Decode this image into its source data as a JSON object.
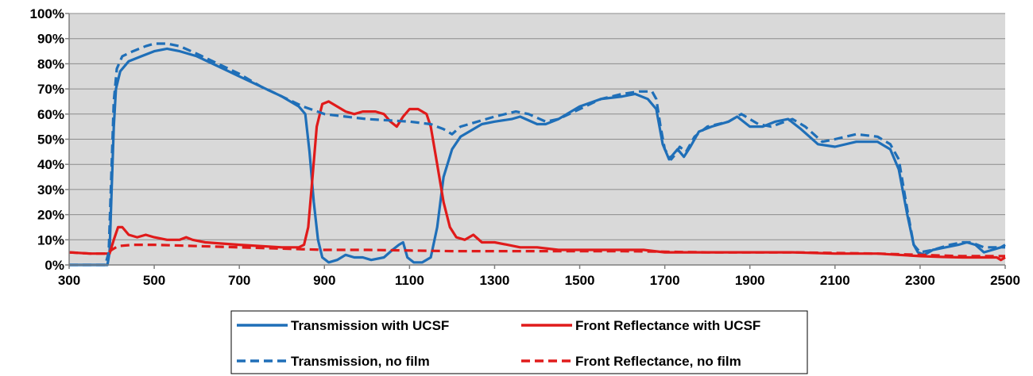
{
  "chart_data": {
    "type": "line",
    "title": "",
    "xlabel": "",
    "ylabel": "",
    "xlim": [
      300,
      2500
    ],
    "ylim": [
      0,
      100
    ],
    "x_ticks": [
      300,
      500,
      700,
      900,
      1100,
      1300,
      1500,
      1700,
      1900,
      2100,
      2300,
      2500
    ],
    "x_tick_labels": [
      "300",
      "500",
      "700",
      "900",
      "1100",
      "1300",
      "1500",
      "1700",
      "1900",
      "2100",
      "2300",
      "2500"
    ],
    "y_ticks": [
      0,
      10,
      20,
      30,
      40,
      50,
      60,
      70,
      80,
      90,
      100
    ],
    "y_tick_labels": [
      "0%",
      "10%",
      "20%",
      "30%",
      "40%",
      "50%",
      "60%",
      "70%",
      "80%",
      "90%",
      "100%"
    ],
    "grid": "horizontal",
    "plot_background": "#d9d9d9",
    "legend_position": "bottom",
    "series": [
      {
        "name": "Transmission with UCSF",
        "color": "#1f6fb8",
        "style": "solid",
        "points": [
          [
            300,
            0
          ],
          [
            390,
            0
          ],
          [
            395,
            5
          ],
          [
            400,
            30
          ],
          [
            405,
            55
          ],
          [
            410,
            70
          ],
          [
            420,
            77
          ],
          [
            440,
            81
          ],
          [
            470,
            83
          ],
          [
            500,
            85
          ],
          [
            530,
            86
          ],
          [
            560,
            85
          ],
          [
            600,
            83
          ],
          [
            650,
            79
          ],
          [
            700,
            75
          ],
          [
            750,
            71
          ],
          [
            800,
            67
          ],
          [
            840,
            63
          ],
          [
            855,
            60
          ],
          [
            865,
            45
          ],
          [
            875,
            25
          ],
          [
            885,
            10
          ],
          [
            895,
            3
          ],
          [
            910,
            1
          ],
          [
            930,
            2
          ],
          [
            950,
            4
          ],
          [
            970,
            3
          ],
          [
            990,
            3
          ],
          [
            1010,
            2
          ],
          [
            1040,
            3
          ],
          [
            1060,
            6
          ],
          [
            1075,
            8
          ],
          [
            1085,
            9
          ],
          [
            1095,
            3
          ],
          [
            1110,
            1
          ],
          [
            1130,
            1
          ],
          [
            1150,
            3
          ],
          [
            1165,
            15
          ],
          [
            1180,
            35
          ],
          [
            1200,
            46
          ],
          [
            1220,
            51
          ],
          [
            1240,
            53
          ],
          [
            1270,
            56
          ],
          [
            1300,
            57
          ],
          [
            1340,
            58
          ],
          [
            1360,
            59
          ],
          [
            1400,
            56
          ],
          [
            1420,
            56
          ],
          [
            1450,
            58
          ],
          [
            1500,
            63
          ],
          [
            1550,
            66
          ],
          [
            1600,
            67
          ],
          [
            1630,
            68
          ],
          [
            1660,
            66
          ],
          [
            1680,
            62
          ],
          [
            1695,
            48
          ],
          [
            1710,
            42
          ],
          [
            1720,
            44
          ],
          [
            1730,
            46
          ],
          [
            1745,
            43
          ],
          [
            1760,
            47
          ],
          [
            1780,
            53
          ],
          [
            1810,
            55
          ],
          [
            1850,
            57
          ],
          [
            1870,
            59
          ],
          [
            1900,
            55
          ],
          [
            1930,
            55
          ],
          [
            1960,
            57
          ],
          [
            1990,
            58
          ],
          [
            2020,
            54
          ],
          [
            2060,
            48
          ],
          [
            2100,
            47
          ],
          [
            2150,
            49
          ],
          [
            2200,
            49
          ],
          [
            2230,
            46
          ],
          [
            2250,
            38
          ],
          [
            2270,
            20
          ],
          [
            2285,
            8
          ],
          [
            2295,
            5
          ],
          [
            2310,
            4
          ],
          [
            2330,
            6
          ],
          [
            2360,
            7
          ],
          [
            2390,
            8
          ],
          [
            2410,
            9
          ],
          [
            2430,
            8
          ],
          [
            2450,
            5
          ],
          [
            2470,
            6
          ],
          [
            2490,
            7
          ],
          [
            2500,
            8
          ]
        ]
      },
      {
        "name": "Front Reflectance with UCSF",
        "color": "#e01b1b",
        "style": "solid",
        "points": [
          [
            300,
            5
          ],
          [
            350,
            4.5
          ],
          [
            395,
            4.5
          ],
          [
            405,
            10
          ],
          [
            415,
            15
          ],
          [
            425,
            15
          ],
          [
            440,
            12
          ],
          [
            460,
            11
          ],
          [
            480,
            12
          ],
          [
            500,
            11
          ],
          [
            530,
            10
          ],
          [
            560,
            10
          ],
          [
            575,
            11
          ],
          [
            590,
            10
          ],
          [
            620,
            9
          ],
          [
            700,
            8
          ],
          [
            800,
            7
          ],
          [
            840,
            7
          ],
          [
            852,
            8
          ],
          [
            862,
            15
          ],
          [
            872,
            35
          ],
          [
            882,
            55
          ],
          [
            895,
            64
          ],
          [
            910,
            65
          ],
          [
            930,
            63
          ],
          [
            950,
            61
          ],
          [
            970,
            60
          ],
          [
            990,
            61
          ],
          [
            1020,
            61
          ],
          [
            1040,
            60
          ],
          [
            1055,
            57
          ],
          [
            1070,
            55
          ],
          [
            1085,
            59
          ],
          [
            1100,
            62
          ],
          [
            1120,
            62
          ],
          [
            1140,
            60
          ],
          [
            1150,
            55
          ],
          [
            1165,
            40
          ],
          [
            1180,
            25
          ],
          [
            1195,
            15
          ],
          [
            1210,
            11
          ],
          [
            1230,
            10
          ],
          [
            1250,
            12
          ],
          [
            1270,
            9
          ],
          [
            1300,
            9
          ],
          [
            1330,
            8
          ],
          [
            1360,
            7
          ],
          [
            1400,
            7
          ],
          [
            1450,
            6
          ],
          [
            1500,
            6
          ],
          [
            1550,
            6
          ],
          [
            1600,
            6
          ],
          [
            1650,
            6
          ],
          [
            1700,
            5
          ],
          [
            1750,
            5
          ],
          [
            1800,
            5
          ],
          [
            1900,
            5
          ],
          [
            2000,
            5
          ],
          [
            2100,
            4.5
          ],
          [
            2200,
            4.5
          ],
          [
            2250,
            4
          ],
          [
            2300,
            3.5
          ],
          [
            2350,
            3.2
          ],
          [
            2400,
            3
          ],
          [
            2450,
            3
          ],
          [
            2480,
            3
          ],
          [
            2490,
            2
          ],
          [
            2500,
            3
          ]
        ]
      },
      {
        "name": "Transmission, no film",
        "color": "#1f6fb8",
        "style": "dashed",
        "points": [
          [
            300,
            0
          ],
          [
            385,
            0
          ],
          [
            393,
            5
          ],
          [
            398,
            30
          ],
          [
            405,
            65
          ],
          [
            412,
            78
          ],
          [
            425,
            83
          ],
          [
            450,
            85
          ],
          [
            480,
            87
          ],
          [
            500,
            88
          ],
          [
            530,
            88
          ],
          [
            560,
            87
          ],
          [
            600,
            84
          ],
          [
            650,
            80
          ],
          [
            700,
            76
          ],
          [
            750,
            71
          ],
          [
            800,
            67
          ],
          [
            850,
            63
          ],
          [
            900,
            60
          ],
          [
            950,
            59
          ],
          [
            1000,
            58
          ],
          [
            1050,
            57.5
          ],
          [
            1100,
            57
          ],
          [
            1150,
            56
          ],
          [
            1180,
            54
          ],
          [
            1200,
            52
          ],
          [
            1220,
            55
          ],
          [
            1260,
            57
          ],
          [
            1300,
            59
          ],
          [
            1350,
            61
          ],
          [
            1380,
            60
          ],
          [
            1420,
            57
          ],
          [
            1450,
            58
          ],
          [
            1500,
            62
          ],
          [
            1550,
            66
          ],
          [
            1600,
            68
          ],
          [
            1640,
            69
          ],
          [
            1670,
            69
          ],
          [
            1680,
            66
          ],
          [
            1690,
            55
          ],
          [
            1700,
            46
          ],
          [
            1715,
            42
          ],
          [
            1725,
            44
          ],
          [
            1735,
            47
          ],
          [
            1750,
            45
          ],
          [
            1770,
            51
          ],
          [
            1800,
            55
          ],
          [
            1850,
            57
          ],
          [
            1880,
            60
          ],
          [
            1920,
            56
          ],
          [
            1950,
            55
          ],
          [
            2000,
            58
          ],
          [
            2030,
            55
          ],
          [
            2070,
            49
          ],
          [
            2100,
            50
          ],
          [
            2150,
            52
          ],
          [
            2200,
            51
          ],
          [
            2230,
            48
          ],
          [
            2250,
            42
          ],
          [
            2270,
            22
          ],
          [
            2285,
            8
          ],
          [
            2300,
            5
          ],
          [
            2330,
            6
          ],
          [
            2370,
            8
          ],
          [
            2400,
            9
          ],
          [
            2420,
            9
          ],
          [
            2450,
            7
          ],
          [
            2480,
            7
          ],
          [
            2500,
            7
          ]
        ]
      },
      {
        "name": "Front Reflectance, no film",
        "color": "#e01b1b",
        "style": "dashed",
        "points": [
          [
            300,
            5
          ],
          [
            350,
            4.5
          ],
          [
            390,
            4.5
          ],
          [
            400,
            6
          ],
          [
            415,
            7.5
          ],
          [
            450,
            8
          ],
          [
            500,
            8
          ],
          [
            600,
            7.5
          ],
          [
            700,
            7
          ],
          [
            800,
            6.5
          ],
          [
            900,
            6
          ],
          [
            1000,
            6
          ],
          [
            1200,
            5.5
          ],
          [
            1400,
            5.5
          ],
          [
            1600,
            5.5
          ],
          [
            1800,
            5
          ],
          [
            2000,
            5
          ],
          [
            2200,
            4.5
          ],
          [
            2300,
            4
          ],
          [
            2400,
            3.5
          ],
          [
            2500,
            3.5
          ]
        ]
      }
    ]
  }
}
